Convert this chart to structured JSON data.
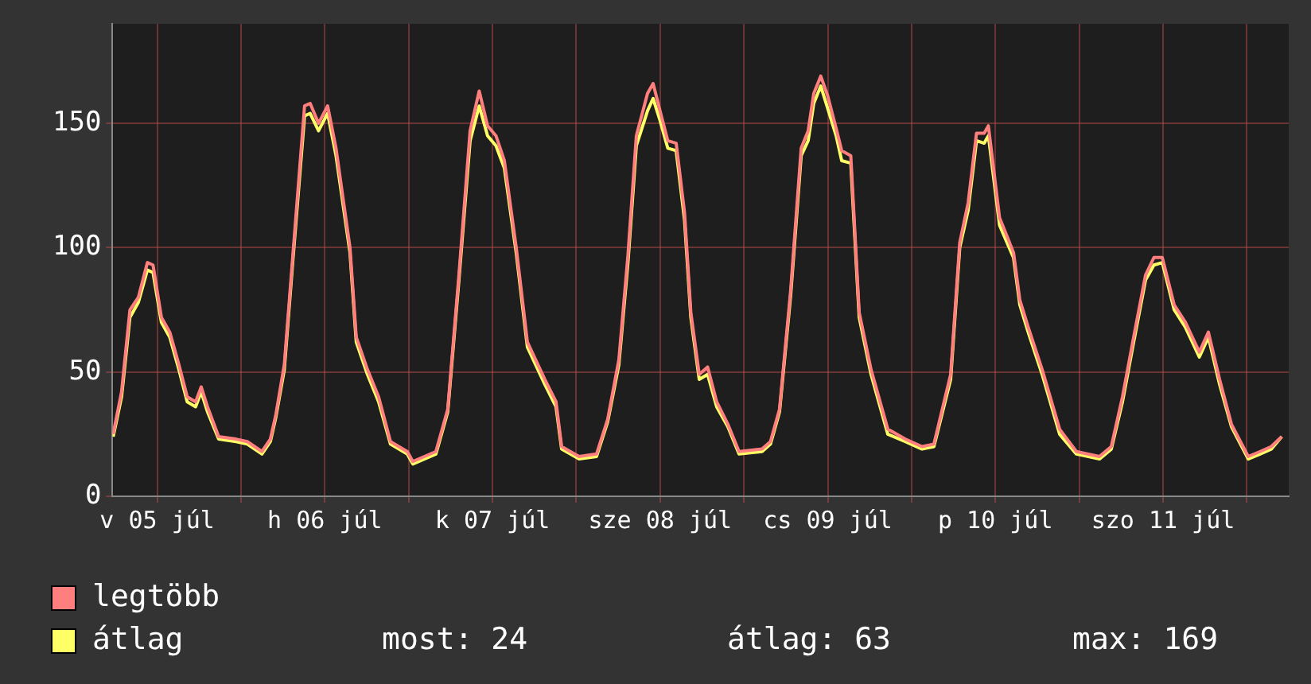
{
  "chart_data": {
    "type": "line",
    "x": [
      "--07-05T05:42",
      "--07-05T06:54",
      "--07-05T08:06",
      "--07-05T09:18",
      "--07-05T10:36",
      "--07-05T11:24",
      "--07-05T12:36",
      "--07-05T13:48",
      "--07-05T15:06",
      "--07-05T16:18",
      "--07-05T17:30",
      "--07-05T18:18",
      "--07-05T19:12",
      "--07-05T20:48",
      "--07-05T23:18",
      "--07-06T00:54",
      "--07-06T03:00",
      "--07-06T04:12",
      "--07-06T05:00",
      "--07-06T06:12",
      "--07-06T07:24",
      "--07-06T09:06",
      "--07-06T09:54",
      "--07-06T11:06",
      "--07-06T12:24",
      "--07-06T13:36",
      "--07-06T15:36",
      "--07-06T16:30",
      "--07-06T18:06",
      "--07-06T19:42",
      "--07-06T21:24",
      "--07-06T23:48",
      "--07-07T00:36",
      "--07-07T03:54",
      "--07-07T05:36",
      "--07-07T07:12",
      "--07-07T08:48",
      "--07-07T10:06",
      "--07-07T11:18",
      "--07-07T12:30",
      "--07-07T13:42",
      "--07-07T15:24",
      "--07-07T17:00",
      "--07-07T19:30",
      "--07-07T21:06",
      "--07-07T21:54",
      "--07-08T00:24",
      "--07-08T02:54",
      "--07-08T04:30",
      "--07-08T06:06",
      "--07-08T07:24",
      "--07-08T08:36",
      "--07-08T10:12",
      "--07-08T11:00",
      "--07-08T11:54",
      "--07-08T13:06",
      "--07-08T14:18",
      "--07-08T15:30",
      "--07-08T16:24",
      "--07-08T17:36",
      "--07-08T18:48",
      "--07-08T20:06",
      "--07-08T21:42",
      "--07-08T23:18",
      "--07-09T02:36",
      "--07-09T03:48",
      "--07-09T05:06",
      "--07-09T06:42",
      "--07-09T08:12",
      "--07-09T09:12",
      "--07-09T10:00",
      "--07-09T11:00",
      "--07-09T12:00",
      "--07-09T13:12",
      "--07-09T14:00",
      "--07-09T15:18",
      "--07-09T16:30",
      "--07-09T18:12",
      "--07-09T20:36",
      "--07-09T23:06",
      "--07-10T01:30",
      "--07-10T03:12",
      "--07-10T05:36",
      "--07-10T06:54",
      "--07-10T08:06",
      "--07-10T09:18",
      "--07-10T10:24",
      "--07-10T11:00",
      "--07-10T12:36",
      "--07-10T14:36",
      "--07-10T15:30",
      "--07-10T16:42",
      "--07-10T18:42",
      "--07-10T21:12",
      "--07-10T23:36",
      "--07-11T02:54",
      "--07-11T04:36",
      "--07-11T06:12",
      "--07-11T07:48",
      "--07-11T09:30",
      "--07-11T10:42",
      "--07-11T11:54",
      "--07-11T13:36",
      "--07-11T15:12",
      "--07-11T17:12",
      "--07-11T18:30",
      "--07-11T20:06",
      "--07-11T21:48",
      "--07-12T00:12",
      "--07-12T01:54",
      "--07-12T03:30",
      "--07-12T05:00"
    ],
    "series": [
      {
        "name": "legtöbb",
        "color": "#ff7f7f",
        "values": [
          25,
          42,
          75,
          80,
          94,
          93,
          72,
          66,
          53,
          40,
          38,
          44,
          36,
          24,
          23,
          22,
          18,
          23,
          33,
          53,
          96,
          157,
          158,
          150,
          157,
          140,
          100,
          64,
          51,
          40,
          22,
          18,
          14,
          18,
          35,
          89,
          147,
          163,
          149,
          145,
          135,
          100,
          62,
          47,
          38,
          20,
          16,
          17,
          31,
          55,
          97,
          145,
          162,
          166,
          156,
          143,
          142,
          114,
          74,
          49,
          52,
          38,
          29,
          18,
          19,
          22,
          35,
          83,
          140,
          147,
          162,
          169,
          161,
          148,
          139,
          137,
          74,
          51,
          27,
          23,
          20,
          21,
          49,
          102,
          118,
          146,
          146,
          149,
          112,
          98,
          79,
          68,
          51,
          27,
          18,
          16,
          20,
          40,
          64,
          89,
          96,
          96,
          77,
          70,
          58,
          66,
          47,
          29,
          16,
          18,
          20,
          24
        ]
      },
      {
        "name": "átlag",
        "color": "#ffff66",
        "values": [
          24,
          40,
          72,
          78,
          91,
          90,
          70,
          64,
          51,
          38,
          36,
          42,
          34,
          23,
          22,
          21,
          17,
          22,
          32,
          51,
          94,
          153,
          154,
          147,
          154,
          137,
          98,
          62,
          49,
          38,
          21,
          17,
          13,
          17,
          34,
          87,
          143,
          157,
          145,
          141,
          132,
          98,
          60,
          45,
          36,
          19,
          15,
          16,
          30,
          53,
          94,
          141,
          155,
          160,
          152,
          140,
          139,
          111,
          72,
          47,
          49,
          36,
          28,
          17,
          18,
          21,
          34,
          81,
          137,
          143,
          158,
          165,
          156,
          145,
          135,
          134,
          72,
          49,
          25,
          22,
          19,
          20,
          47,
          100,
          115,
          143,
          142,
          145,
          109,
          96,
          77,
          66,
          49,
          25,
          17,
          15,
          19,
          38,
          62,
          87,
          93,
          94,
          75,
          68,
          56,
          64,
          45,
          28,
          15,
          17,
          19,
          24
        ]
      }
    ],
    "xlim": [
      "--07-05T05:36",
      "--07-12T06:00"
    ],
    "xticks": [
      {
        "value": "--07-05T12:00",
        "label": "v 05 júl"
      },
      {
        "value": "--07-06T00:00",
        "label": null
      },
      {
        "value": "--07-06T12:00",
        "label": "h 06 júl"
      },
      {
        "value": "--07-07T00:00",
        "label": null
      },
      {
        "value": "--07-07T12:00",
        "label": "k 07 júl"
      },
      {
        "value": "--07-08T00:00",
        "label": null
      },
      {
        "value": "--07-08T12:00",
        "label": "sze 08 júl"
      },
      {
        "value": "--07-09T00:00",
        "label": null
      },
      {
        "value": "--07-09T12:00",
        "label": "cs 09 júl"
      },
      {
        "value": "--07-10T00:00",
        "label": null
      },
      {
        "value": "--07-10T12:00",
        "label": "p 10 júl"
      },
      {
        "value": "--07-11T00:00",
        "label": null
      },
      {
        "value": "--07-11T12:00",
        "label": "szo 11 júl"
      },
      {
        "value": "--07-12T00:00",
        "label": null
      }
    ],
    "ylim": [
      0,
      190
    ],
    "yticks": [
      0,
      50,
      100,
      150
    ],
    "grid": true,
    "legend": "bottom left",
    "marker": "none",
    "line_style": "solid",
    "annotations": [
      "most: 24",
      "átlag: 63",
      "max: 169"
    ]
  }
}
